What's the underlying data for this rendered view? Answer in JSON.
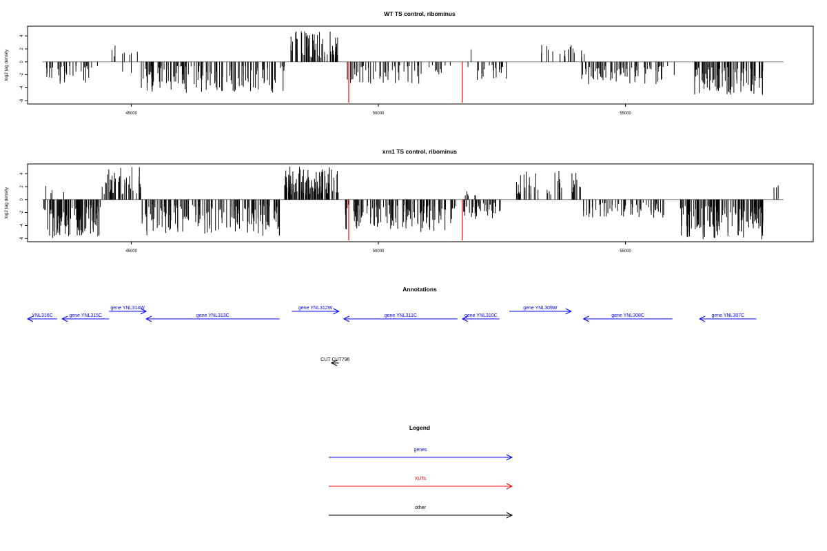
{
  "colors": {
    "gene": "#0000ff",
    "xut": "#ff0000",
    "other": "#000000",
    "axis": "#000000",
    "zero": "#7f7f7f"
  },
  "chart_data": [
    {
      "type": "bar",
      "title": "WT TS control, ribominus",
      "ylabel": "log2 tag density",
      "xlim": [
        42900,
        58800
      ],
      "ylim": [
        -6.5,
        5.5
      ],
      "xticks": [
        45000,
        50000,
        55000
      ],
      "xtick_labels": [
        "45000",
        "50000",
        "55000"
      ],
      "yticks": [
        -6,
        -4,
        -2,
        0,
        2,
        4
      ],
      "ytick_labels": [
        "-6",
        "-4",
        "-2",
        "0",
        "2",
        "4"
      ],
      "zero_line": [
        43200,
        58200
      ],
      "highlight_bars": [
        {
          "x": 49400,
          "y": -6.3
        },
        {
          "x": 51700,
          "y": -6.3
        }
      ],
      "regions": [
        {
          "x0": 43250,
          "x1": 44350,
          "n": 34,
          "sign": -1,
          "min": 0.6,
          "max": 3.4,
          "seed": 11
        },
        {
          "x0": 44500,
          "x1": 45200,
          "n": 8,
          "sign": 1,
          "min": 0.8,
          "max": 3.0,
          "seed": 17
        },
        {
          "x0": 44750,
          "x1": 45050,
          "n": 2,
          "sign": -1,
          "min": 1.5,
          "max": 2.2,
          "seed": 19
        },
        {
          "x0": 45200,
          "x1": 48100,
          "n": 140,
          "sign": -1,
          "min": 0.6,
          "max": 4.8,
          "seed": 23
        },
        {
          "x0": 48200,
          "x1": 49200,
          "n": 55,
          "sign": 1,
          "min": 0.6,
          "max": 4.9,
          "seed": 29
        },
        {
          "x0": 49300,
          "x1": 50900,
          "n": 45,
          "sign": -1,
          "min": 0.5,
          "max": 3.4,
          "seed": 31
        },
        {
          "x0": 51000,
          "x1": 51600,
          "n": 10,
          "sign": -1,
          "min": 0.5,
          "max": 2.2,
          "seed": 37
        },
        {
          "x0": 51800,
          "x1": 52600,
          "n": 20,
          "sign": -1,
          "min": 0.5,
          "max": 2.8,
          "seed": 41
        },
        {
          "x0": 51850,
          "x1": 51950,
          "n": 1,
          "sign": 1,
          "min": 1.9,
          "max": 2.0,
          "seed": 43
        },
        {
          "x0": 53300,
          "x1": 54200,
          "n": 18,
          "sign": 1,
          "min": 0.8,
          "max": 2.6,
          "seed": 47
        },
        {
          "x0": 54100,
          "x1": 56000,
          "n": 70,
          "sign": -1,
          "min": 0.6,
          "max": 3.6,
          "seed": 53
        },
        {
          "x0": 56400,
          "x1": 57800,
          "n": 90,
          "sign": -1,
          "min": 0.8,
          "max": 5.2,
          "seed": 59
        }
      ]
    },
    {
      "type": "bar",
      "title": "xrn1 TS control, ribominus",
      "ylabel": "log2 tag density",
      "xlim": [
        42900,
        58800
      ],
      "ylim": [
        -6.5,
        5.5
      ],
      "xticks": [
        45000,
        50000,
        55000
      ],
      "xtick_labels": [
        "45000",
        "50000",
        "55000"
      ],
      "yticks": [
        -6,
        -4,
        -2,
        0,
        2,
        4
      ],
      "ytick_labels": [
        "-6",
        "-4",
        "-2",
        "0",
        "2",
        "4"
      ],
      "zero_line": [
        43200,
        58200
      ],
      "highlight_bars": [
        {
          "x": 49400,
          "y": -6.3
        },
        {
          "x": 51700,
          "y": -6.3
        }
      ],
      "regions": [
        {
          "x0": 43200,
          "x1": 44400,
          "n": 90,
          "sign": -1,
          "min": 0.8,
          "max": 6.0,
          "seed": 61
        },
        {
          "x0": 43250,
          "x1": 43800,
          "n": 4,
          "sign": 1,
          "min": 1.0,
          "max": 2.7,
          "seed": 67
        },
        {
          "x0": 44400,
          "x1": 45200,
          "n": 45,
          "sign": 1,
          "min": 0.8,
          "max": 5.2,
          "seed": 71
        },
        {
          "x0": 45200,
          "x1": 48000,
          "n": 150,
          "sign": -1,
          "min": 0.8,
          "max": 5.6,
          "seed": 73
        },
        {
          "x0": 48100,
          "x1": 49200,
          "n": 110,
          "sign": 1,
          "min": 0.8,
          "max": 5.1,
          "seed": 79
        },
        {
          "x0": 49300,
          "x1": 51600,
          "n": 120,
          "sign": -1,
          "min": 0.8,
          "max": 5.0,
          "seed": 83
        },
        {
          "x0": 51700,
          "x1": 52500,
          "n": 40,
          "sign": -1,
          "min": 0.5,
          "max": 3.0,
          "seed": 89
        },
        {
          "x0": 51750,
          "x1": 52000,
          "n": 6,
          "sign": 1,
          "min": 0.5,
          "max": 2.4,
          "seed": 97
        },
        {
          "x0": 52700,
          "x1": 54100,
          "n": 40,
          "sign": 1,
          "min": 0.8,
          "max": 4.6,
          "seed": 101
        },
        {
          "x0": 54100,
          "x1": 55800,
          "n": 60,
          "sign": -1,
          "min": 0.5,
          "max": 2.8,
          "seed": 103
        },
        {
          "x0": 56100,
          "x1": 57800,
          "n": 130,
          "sign": -1,
          "min": 1.0,
          "max": 6.2,
          "seed": 107
        },
        {
          "x0": 58000,
          "x1": 58200,
          "n": 3,
          "sign": 1,
          "min": 1.8,
          "max": 2.4,
          "seed": 109
        }
      ]
    }
  ],
  "annotations": {
    "title": "Annotations",
    "genes": [
      {
        "label": "YNL316C",
        "x0": 42900,
        "x1": 43500,
        "strand": "-",
        "row": 0
      },
      {
        "label": "gene YNL315C",
        "x0": 43600,
        "x1": 44550,
        "strand": "-",
        "row": 0
      },
      {
        "label": "gene YNL314W",
        "x0": 44550,
        "x1": 45300,
        "strand": "+",
        "row": 1
      },
      {
        "label": "gene YNL313C",
        "x0": 45300,
        "x1": 48000,
        "strand": "-",
        "row": 0
      },
      {
        "label": "gene YNL312W",
        "x0": 48250,
        "x1": 49200,
        "strand": "+",
        "row": 1
      },
      {
        "label": "gene YNL311C",
        "x0": 49300,
        "x1": 51600,
        "strand": "-",
        "row": 0
      },
      {
        "label": "gene YNL310C",
        "x0": 51700,
        "x1": 52450,
        "strand": "-",
        "row": 0
      },
      {
        "label": "gene YNL309W",
        "x0": 52650,
        "x1": 53900,
        "strand": "+",
        "row": 1
      },
      {
        "label": "gene YNL308C",
        "x0": 54150,
        "x1": 55950,
        "strand": "-",
        "row": 0
      },
      {
        "label": "gene YNL307C",
        "x0": 56500,
        "x1": 57650,
        "strand": "-",
        "row": 0
      }
    ],
    "other": [
      {
        "label": "CUT CUT796",
        "x0": 49050,
        "x1": 49200,
        "strand": "-"
      }
    ]
  },
  "legend": {
    "title": "Legend",
    "items": [
      {
        "label": "genes",
        "color": "#0000ff"
      },
      {
        "label": "XUTs",
        "color": "#ff0000"
      },
      {
        "label": "other",
        "color": "#000000"
      }
    ]
  }
}
